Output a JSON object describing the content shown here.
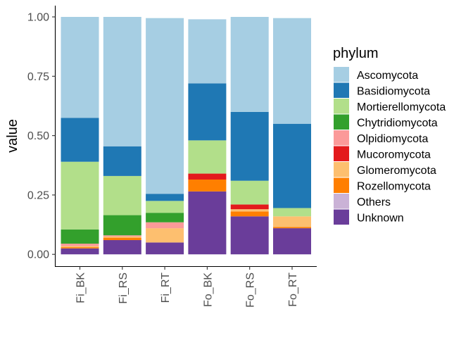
{
  "chart_data": {
    "type": "bar",
    "stacked": true,
    "title": "",
    "xlabel": "",
    "ylabel": "value",
    "ylim": [
      0,
      1
    ],
    "yticks": [
      "0.00",
      "0.25",
      "0.50",
      "0.75",
      "1.00"
    ],
    "categories": [
      "Fi_BK",
      "Fi_RS",
      "Fi_RT",
      "Fo_BK",
      "Fo_RS",
      "Fo_RT"
    ],
    "legend_title": "phylum",
    "legend_position": "right",
    "grid": false,
    "series": [
      {
        "name": "Ascomycota",
        "color": "#A6CEE3",
        "values": [
          0.425,
          0.545,
          0.74,
          0.27,
          0.4,
          0.445
        ]
      },
      {
        "name": "Basidiomycota",
        "color": "#1F78B4",
        "values": [
          0.185,
          0.125,
          0.03,
          0.24,
          0.29,
          0.355
        ]
      },
      {
        "name": "Mortierellomycota",
        "color": "#B2DF8A",
        "values": [
          0.285,
          0.165,
          0.05,
          0.14,
          0.1,
          0.035
        ]
      },
      {
        "name": "Chytridiomycota",
        "color": "#33A02C",
        "values": [
          0.06,
          0.085,
          0.04,
          0.0,
          0.0,
          0.0
        ]
      },
      {
        "name": "Olpidiomycota",
        "color": "#FB9A99",
        "values": [
          0.01,
          0.005,
          0.025,
          0.0,
          0.0,
          0.0
        ]
      },
      {
        "name": "Mucoromycota",
        "color": "#E31A1C",
        "values": [
          0.0,
          0.0,
          0.0,
          0.025,
          0.02,
          0.0
        ]
      },
      {
        "name": "Glomeromycota",
        "color": "#FDBF6F",
        "values": [
          0.005,
          0.005,
          0.06,
          0.0,
          0.01,
          0.045
        ]
      },
      {
        "name": "Rozellomycota",
        "color": "#FF7F00",
        "values": [
          0.005,
          0.01,
          0.0,
          0.05,
          0.02,
          0.005
        ]
      },
      {
        "name": "Others",
        "color": "#CAB2D6",
        "values": [
          0.0,
          0.0,
          0.0,
          0.0,
          0.0,
          0.0
        ]
      },
      {
        "name": "Unknown",
        "color": "#6A3D9A",
        "values": [
          0.025,
          0.06,
          0.05,
          0.265,
          0.16,
          0.11
        ]
      }
    ]
  }
}
